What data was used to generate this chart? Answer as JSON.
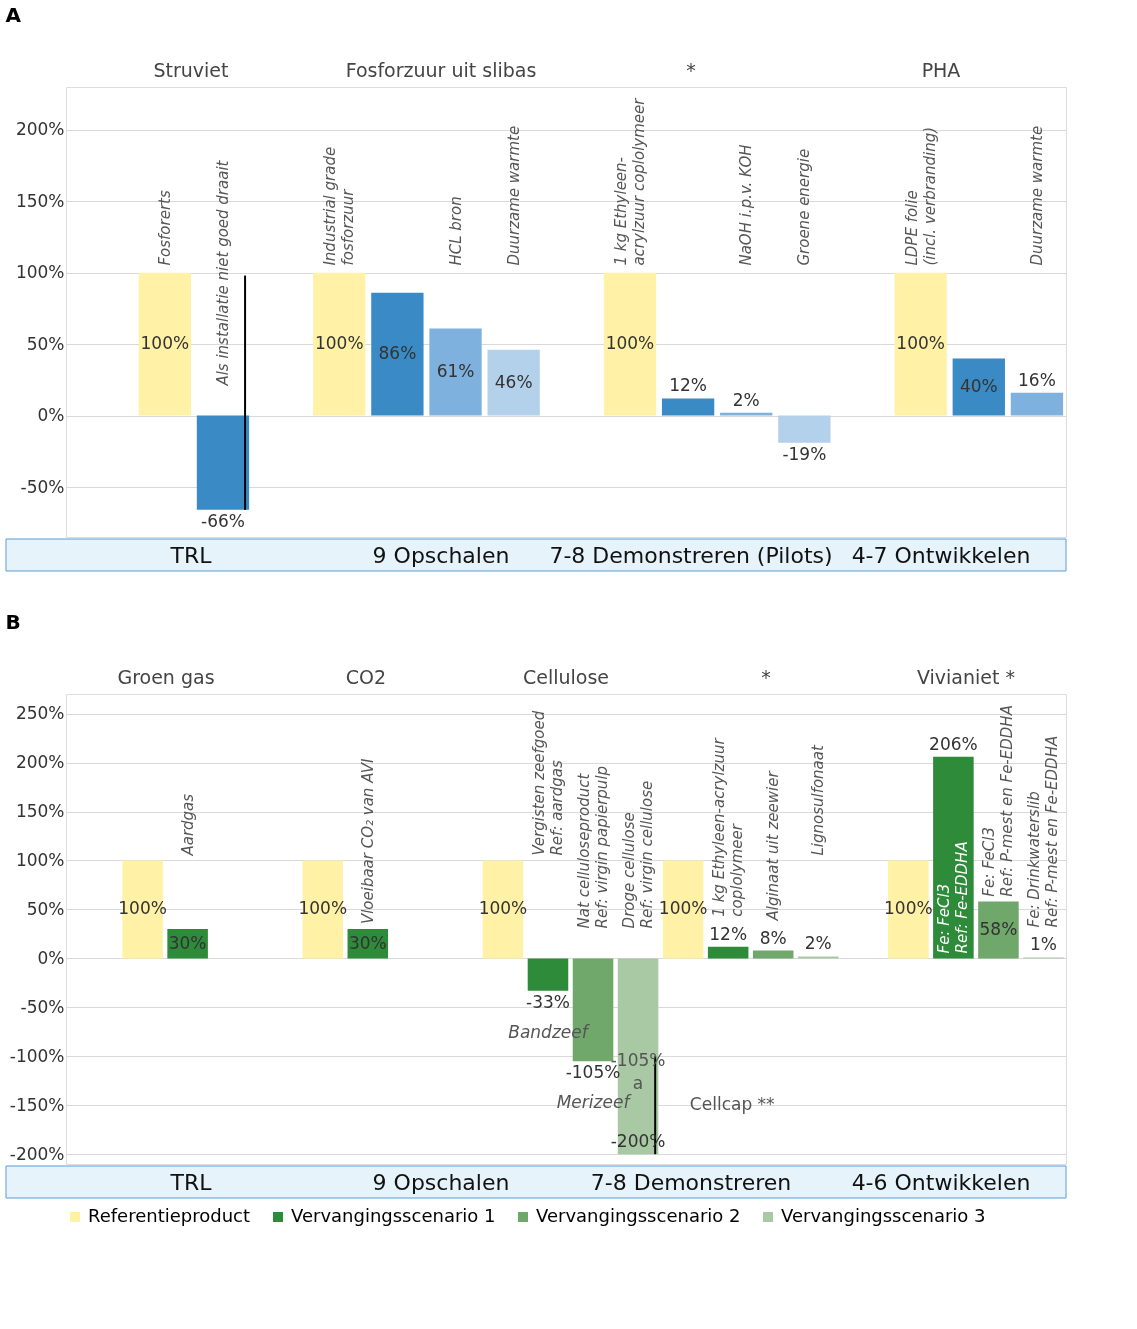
{
  "chart_data": [
    {
      "type": "bar",
      "title": "A",
      "categories": [
        "Fosforerts",
        "Als installatie niet goed draait",
        null,
        "Industrial grade\nfosforzuur",
        null,
        "HCL bron",
        "Duurzame warmte",
        null,
        "1 kg Ethyleen-\nacrylzuur coplolymeer",
        null,
        "NaOH i.p.v. KOH",
        "Groene energie",
        null,
        "LDPE folie\n(incl. verbranding)",
        null,
        "Duurzame warmte"
      ],
      "values": [
        100,
        -66,
        null,
        100,
        86,
        61,
        46,
        null,
        100,
        12,
        2,
        -19,
        null,
        100,
        40,
        16
      ],
      "colors": [
        "#fff2a6",
        "#3a8ac6",
        null,
        "#fff2a6",
        "#3a8ac6",
        "#7eb1dd",
        "#b4d1ec",
        null,
        "#fff2a6",
        "#3a8ac6",
        "#7eb1dd",
        "#b4d1ec",
        null,
        "#fff2a6",
        "#3a8ac6",
        "#7eb1dd"
      ],
      "errors": [
        null,
        [
          -66,
          98
        ],
        null,
        null,
        null,
        null,
        null,
        null,
        null,
        null,
        null,
        null,
        null,
        null,
        null,
        null
      ],
      "value_labels": [
        "100%",
        "-66%",
        null,
        "100%",
        "86%",
        "61%",
        "46%",
        null,
        "100%",
        "12%",
        "2%",
        "-19%",
        null,
        "100%",
        "40%",
        "16%"
      ],
      "ylim": [
        -85,
        230
      ],
      "yticks": [
        {
          "value": -50,
          "label": "-50%"
        },
        {
          "value": 0,
          "label": "0%"
        },
        {
          "value": 50,
          "label": "50%"
        },
        {
          "value": 100,
          "label": "100%"
        },
        {
          "value": 150,
          "label": "150%"
        },
        {
          "value": 200,
          "label": "200%"
        }
      ],
      "grid": "y",
      "annotations": [
        "Struviet",
        "Fosforzuur uit slibas",
        "*",
        "PHA",
        "TRL",
        "9 Opschalen",
        "7-8 Demonstreren (Pilots)",
        "4-7 Ontwikkelen"
      ]
    },
    {
      "type": "bar",
      "title": "B",
      "categories": [
        null,
        "Aardgas",
        null,
        null,
        null,
        "Vloeibaar CO₂ van AVI",
        null,
        null,
        null,
        "Vergisten zeefgoed\nRef: aardgas",
        "Nat celluloseproduct\nRef: virgin papierpulp",
        "Droge cellulose\nRef: virgin cellulose",
        null,
        "1 kg Ethyleen-acrylzuur\ncoplolymeer",
        "Alginaat uit zeewier",
        "Lignosulfonaat",
        null,
        null,
        "Fe: FeCl3\nRef: Fe-EDDHA",
        "Fe: FeCl3\nRef: P-mest en Fe-EDDHA",
        "Fe: Drinkwaterslib\nRef: P-mest en Fe-EDDHA"
      ],
      "series": [
        {
          "name": "Referentieproduct",
          "color": "#fff2a6",
          "values": [
            100,
            null,
            null,
            null,
            100,
            null,
            null,
            null,
            100,
            null,
            null,
            null,
            100,
            null,
            null,
            null,
            null,
            100,
            null,
            null,
            null
          ],
          "value_labels": [
            "100%",
            null,
            null,
            null,
            "100%",
            null,
            null,
            null,
            "100%",
            null,
            null,
            null,
            "100%",
            null,
            null,
            null,
            null,
            "100%",
            null,
            null,
            null
          ]
        },
        {
          "name": "Vervangingsscenario 1",
          "color": "#2e8b3a",
          "values": [
            null,
            30,
            null,
            null,
            null,
            30,
            null,
            null,
            null,
            -33,
            null,
            null,
            null,
            12,
            null,
            null,
            null,
            null,
            206,
            null,
            null
          ],
          "value_labels": [
            null,
            "30%",
            null,
            null,
            null,
            "30%",
            null,
            null,
            null,
            "-33%",
            null,
            null,
            null,
            "12%",
            null,
            null,
            null,
            null,
            "206%",
            null,
            null
          ]
        },
        {
          "name": "Vervangingsscenario 2",
          "color": "#6fa86a",
          "values": [
            null,
            null,
            null,
            null,
            null,
            null,
            null,
            null,
            null,
            null,
            -105,
            null,
            null,
            null,
            8,
            null,
            null,
            null,
            null,
            58,
            null
          ],
          "value_labels": [
            null,
            null,
            null,
            null,
            null,
            null,
            null,
            null,
            null,
            null,
            "-105%",
            null,
            null,
            null,
            "8%",
            null,
            null,
            null,
            null,
            "58%",
            null
          ]
        },
        {
          "name": "Vervangingsscenario 3",
          "color": "#a9c9a4",
          "values": [
            null,
            null,
            null,
            null,
            null,
            null,
            null,
            null,
            null,
            null,
            null,
            -200,
            null,
            null,
            null,
            2,
            null,
            null,
            null,
            null,
            1
          ],
          "errors": [
            null,
            null,
            null,
            null,
            null,
            null,
            null,
            null,
            null,
            null,
            null,
            [
              -200,
              -100
            ],
            null,
            null,
            null,
            null,
            null,
            null,
            null,
            null,
            null
          ],
          "value_labels": [
            null,
            null,
            null,
            null,
            null,
            null,
            null,
            null,
            null,
            null,
            null,
            "-200%",
            null,
            null,
            null,
            "2%",
            null,
            null,
            null,
            null,
            "1%"
          ]
        }
      ],
      "ylim": [
        -210,
        270
      ],
      "yticks": [
        {
          "value": -200,
          "label": "-200%"
        },
        {
          "value": -150,
          "label": "-150%"
        },
        {
          "value": -100,
          "label": "-100%"
        },
        {
          "value": -50,
          "label": "-50%"
        },
        {
          "value": 0,
          "label": "0%"
        },
        {
          "value": 50,
          "label": "50%"
        },
        {
          "value": 100,
          "label": "100%"
        },
        {
          "value": 150,
          "label": "150%"
        },
        {
          "value": 200,
          "label": "200%"
        },
        {
          "value": 250,
          "label": "250%"
        }
      ],
      "grid": "y",
      "legend": "bottom",
      "annotations": [
        "Groen gas",
        "CO2",
        "Cellulose",
        "*",
        "Vivianiet *",
        {
          "text": "Bandzeef",
          "x": "Vergisten zeefgoed\nRef: aardgas",
          "y": -33
        },
        "-105%",
        "a",
        "Cellcap **",
        {
          "text": "Merizeef",
          "x": "Nat celluloseproduct\nRef: virgin papierpulp",
          "y": -105
        },
        "TRL",
        "9 Opschalen",
        "7-8 Demonstreren",
        "4-6 Ontwikkelen"
      ]
    }
  ]
}
